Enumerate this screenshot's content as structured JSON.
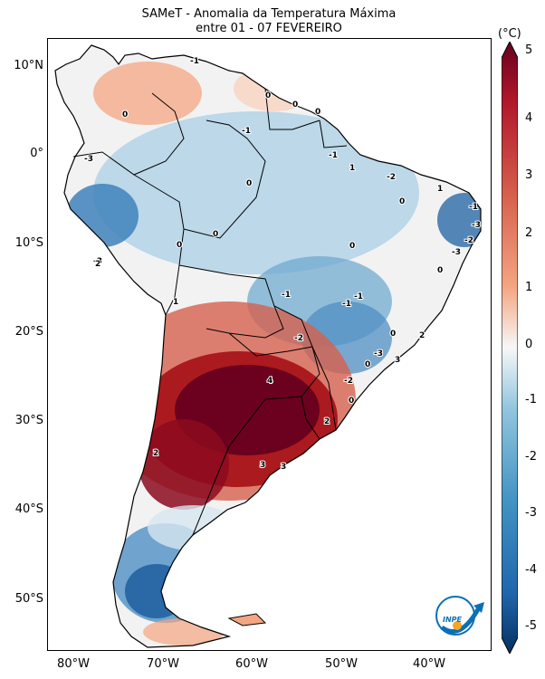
{
  "title": {
    "line1": "SAMeT - Anomalia da Temperatura Máxima",
    "line2": "entre 01 - 07 FEVEREIRO"
  },
  "axes": {
    "y_labels": [
      "10°N",
      "0°",
      "10°S",
      "20°S",
      "30°S",
      "40°S",
      "50°S"
    ],
    "x_labels": [
      "80°W",
      "70°W",
      "60°W",
      "50°W",
      "40°W"
    ]
  },
  "colorbar": {
    "unit": "(°C)",
    "ticks": [
      "5",
      "4",
      "3",
      "2",
      "1",
      "0",
      "-1",
      "-2",
      "-3",
      "-4",
      "-5"
    ]
  },
  "contour_labels": [
    "-1",
    "0",
    "0",
    "0",
    "0",
    "-1",
    "-1",
    "1",
    "-2",
    "1",
    "-1",
    "-3",
    "-3",
    "-2",
    "-3",
    "-3",
    "0",
    "0",
    "0",
    "0",
    "0",
    "0",
    "2",
    "1",
    "-1",
    "-1",
    "-1",
    "-2",
    "0",
    "-2",
    "2",
    "3",
    "0",
    "4",
    "2",
    "0",
    "2",
    "3",
    "3",
    "-3"
  ],
  "logo": {
    "text": "INPE",
    "icon": "inpe-logo"
  },
  "colors": {
    "hot": "#67001f",
    "warm": "#d6604d",
    "neutral": "#f7f7f7",
    "cool": "#4393c3",
    "cold": "#053061"
  }
}
